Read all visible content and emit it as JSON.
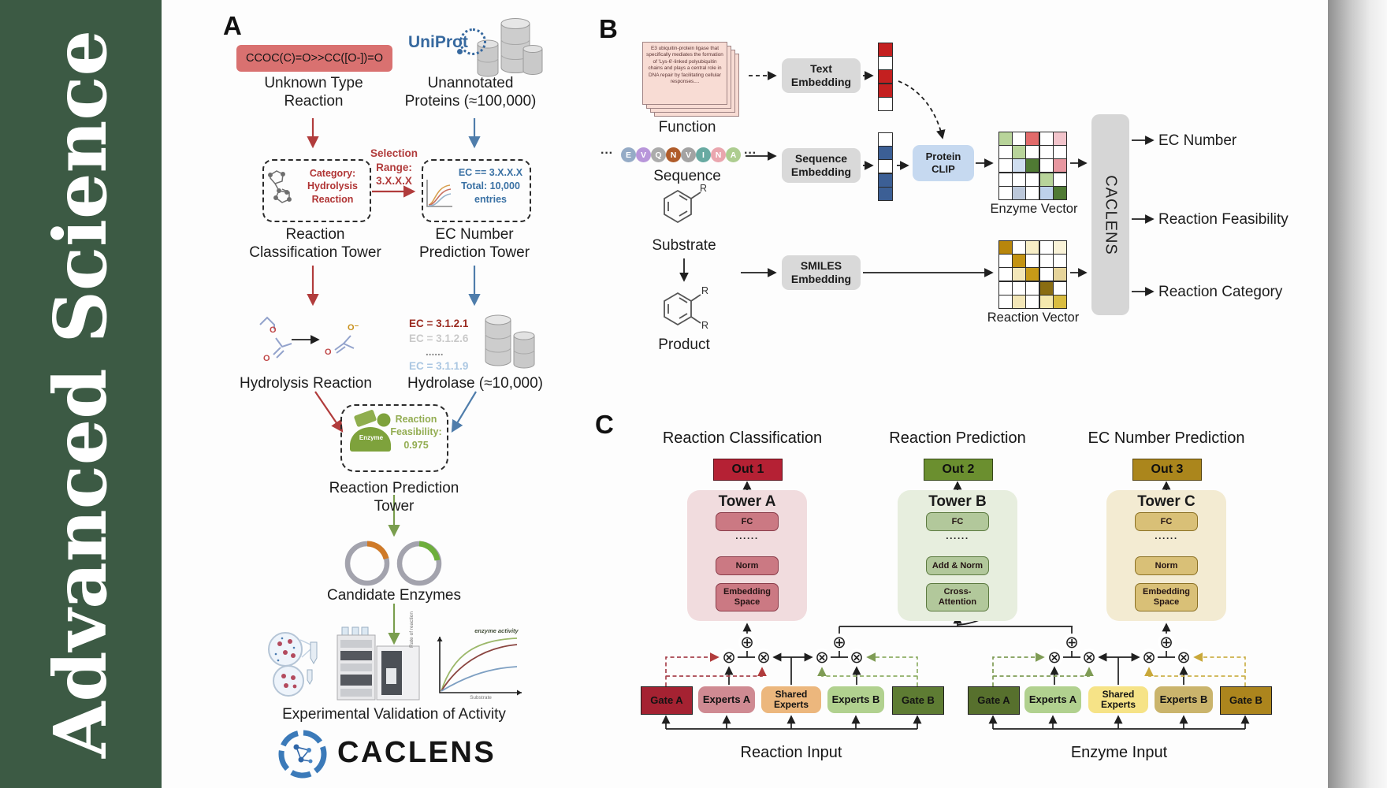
{
  "journal": {
    "title": "Advanced  Science"
  },
  "icons": {
    "oplus": "⊕",
    "otimes": "⊗",
    "uniprot-database-icon": "gray stacked cylinders",
    "caclens-logo-icon": "blue aperture molecule ring"
  },
  "colors": {
    "journal_green": "#3c5a44",
    "smiles_red": "#d97170",
    "arrow_red": "#b13c3c",
    "arrow_blue": "#4f7dab",
    "arrow_green": "#7a9e4e",
    "uniprot_blue": "#37699f",
    "gray_box": "#d9d9d9",
    "protein_clip_blue": "#c6d9f0",
    "out1_red": "#b52134",
    "out2_green": "#6b8f2f",
    "out3_gold": "#ab861c",
    "tower_a_bg": "#f1dcde",
    "tower_a_box": "#cb7983",
    "tower_b_bg": "#e7eede",
    "tower_b_box": "#b2c89b",
    "tower_c_bg": "#f3ebd2",
    "tower_c_box": "#d9c077",
    "gate_a_reaction": "#a52232",
    "experts_a_reaction": "#cf8a92",
    "shared_reaction": "#ecb77d",
    "experts_b_reaction": "#b1d18f",
    "gate_b_reaction": "#5e7c33",
    "gate_a_enzyme": "#57702d",
    "experts_a_enzyme": "#b1d18f",
    "shared_enzyme": "#f6e387",
    "experts_b_enzyme": "#cab46c",
    "gate_b_enzyme": "#ac851d"
  },
  "panel_a": {
    "label": "A",
    "smiles_reaction": "CCOC(C)=O>>CC([O-])=O",
    "unknown_reaction_label": "Unknown Type\nReaction",
    "uniprot_logo": "UniProt",
    "unannotated_label": "Unannotated\nProteins (≈100,000)",
    "selection_range_label": "Selection\nRange:\n3.X.X.X",
    "category_box_label": "Category:\nHydrolysis\nReaction",
    "ec_box_label": "EC == 3.X.X.X\nTotal: 10,000\nentries",
    "classification_tower_label": "Reaction\nClassification Tower",
    "ec_tower_label": "EC Number\nPrediction Tower",
    "hydrolysis_label": "Hydrolysis Reaction",
    "ec_entries": [
      {
        "text": "EC = 3.1.2.1",
        "color": "#9a2a20"
      },
      {
        "text": "EC = 3.1.2.6",
        "color": "#c9c9c9"
      },
      {
        "text": "......",
        "color": "#8a8a8a"
      },
      {
        "text": "EC = 3.1.1.9",
        "color": "#abc7e2"
      }
    ],
    "hydrolase_label": "Hydrolase (≈10,000)",
    "enzyme_icon_label": "Enzyme",
    "feasibility_label": "Reaction\nFeasibility:\n0.975",
    "prediction_tower_label": "Reaction Prediction Tower",
    "candidate_label": "Candidate Enzymes",
    "activity_plot": {
      "annotation": "enzyme activity",
      "ylabel": "Rate of reaction",
      "xlabel": "Substrate"
    },
    "validation_label": "Experimental Validation of Activity",
    "brand": "CACLENS",
    "molecules": {
      "ester_o1": "O",
      "ester_o2": "O",
      "acetate_o": "O",
      "acetate_o_minus": "O⁻"
    }
  },
  "panel_b": {
    "label": "B",
    "function_card_text": "E3 ubiquitin-protein ligase that specifically mediates the formation of 'Lys-6'-linked polyubiquitin chains and plays a central role in DNA repair by facilitating cellular responses....",
    "function_label": "Function",
    "text_embedding_label": "Text\nEmbedding",
    "sequence_label": "Sequence",
    "sequence_embedding_label": "Sequence\nEmbedding",
    "ellipsis": "···",
    "residues": [
      {
        "letter": "E",
        "color": "#95abc6"
      },
      {
        "letter": "V",
        "color": "#b896da"
      },
      {
        "letter": "Q",
        "color": "#ababab"
      },
      {
        "letter": "N",
        "color": "#b05c2a"
      },
      {
        "letter": "V",
        "color": "#a3a3a3"
      },
      {
        "letter": "I",
        "color": "#68aaa2"
      },
      {
        "letter": "N",
        "color": "#eaa6ae"
      },
      {
        "letter": "A",
        "color": "#adcd90"
      }
    ],
    "text_vector_cells": [
      "#c42020",
      "#ffffff",
      "#c42020",
      "#c42020",
      "#ffffff"
    ],
    "sequence_vector_cells": [
      "#ffffff",
      "#3c5f95",
      "#ffffff",
      "#3c5f95",
      "#3c5f95"
    ],
    "protein_clip_label": "Protein\nCLIP",
    "substrate_label": "Substrate",
    "product_label": "Product",
    "substituent_r": "R",
    "smiles_embedding_label": "SMILES\nEmbedding",
    "enzyme_vector_label": "Enzyme Vector",
    "enzyme_vector_cells": [
      [
        "#b8d49a",
        "#ffffff",
        "#e26b6b",
        "#ffffff",
        "#f2c4cb"
      ],
      [
        "#ffffff",
        "#b8d49a",
        "#ffffff",
        "#ffffff",
        "#ffffff"
      ],
      [
        "#ffffff",
        "#cfdef0",
        "#4f7a33",
        "#ffffff",
        "#e897a0"
      ],
      [
        "#ffffff",
        "#ffffff",
        "#ffffff",
        "#b8d49a",
        "#ffffff"
      ],
      [
        "#ffffff",
        "#bcc8da",
        "#ffffff",
        "#bdd1ea",
        "#4f7a33"
      ]
    ],
    "reaction_vector_label": "Reaction Vector",
    "reaction_vector_cells": [
      [
        "#b8860b",
        "#ffffff",
        "#f7eec6",
        "#ffffff",
        "#faf3d8"
      ],
      [
        "#ffffff",
        "#c39312",
        "#ffffff",
        "#ffffff",
        "#ffffff"
      ],
      [
        "#ffffff",
        "#f3e7b8",
        "#c79a18",
        "#ffffff",
        "#e6d49a"
      ],
      [
        "#ffffff",
        "#ffffff",
        "#ffffff",
        "#8a6d12",
        "#ffffff"
      ],
      [
        "#ffffff",
        "#f3e7b8",
        "#ffffff",
        "#f5e9ae",
        "#d9bc3f"
      ]
    ],
    "caclens_label": "CACLENS",
    "outputs": [
      {
        "label": "EC Number"
      },
      {
        "label": "Reaction Feasibility"
      },
      {
        "label": "Reaction Category"
      }
    ]
  },
  "panel_c": {
    "label": "C",
    "columns": [
      {
        "header": "Reaction Classification",
        "out": "Out 1",
        "tower": "Tower A",
        "fc": "FC",
        "dots": "......",
        "mid": "Norm",
        "bottom": "Embedding\nSpace"
      },
      {
        "header": "Reaction Prediction",
        "out": "Out 2",
        "tower": "Tower B",
        "fc": "FC",
        "dots": "......",
        "mid": "Add & Norm",
        "bottom": "Cross-\nAttention"
      },
      {
        "header": "EC Number Prediction",
        "out": "Out 3",
        "tower": "Tower C",
        "fc": "FC",
        "dots": "......",
        "mid": "Norm",
        "bottom": "Embedding\nSpace"
      }
    ],
    "reaction_group": {
      "gate_a": "Gate A",
      "experts_a": "Experts A",
      "shared": "Shared\nExperts",
      "experts_b": "Experts B",
      "gate_b": "Gate B",
      "input_label": "Reaction Input"
    },
    "enzyme_group": {
      "gate_a": "Gate A",
      "experts_a": "Experts A",
      "shared": "Shared\nExperts",
      "experts_b": "Experts B",
      "gate_b": "Gate B",
      "input_label": "Enzyme Input"
    }
  }
}
